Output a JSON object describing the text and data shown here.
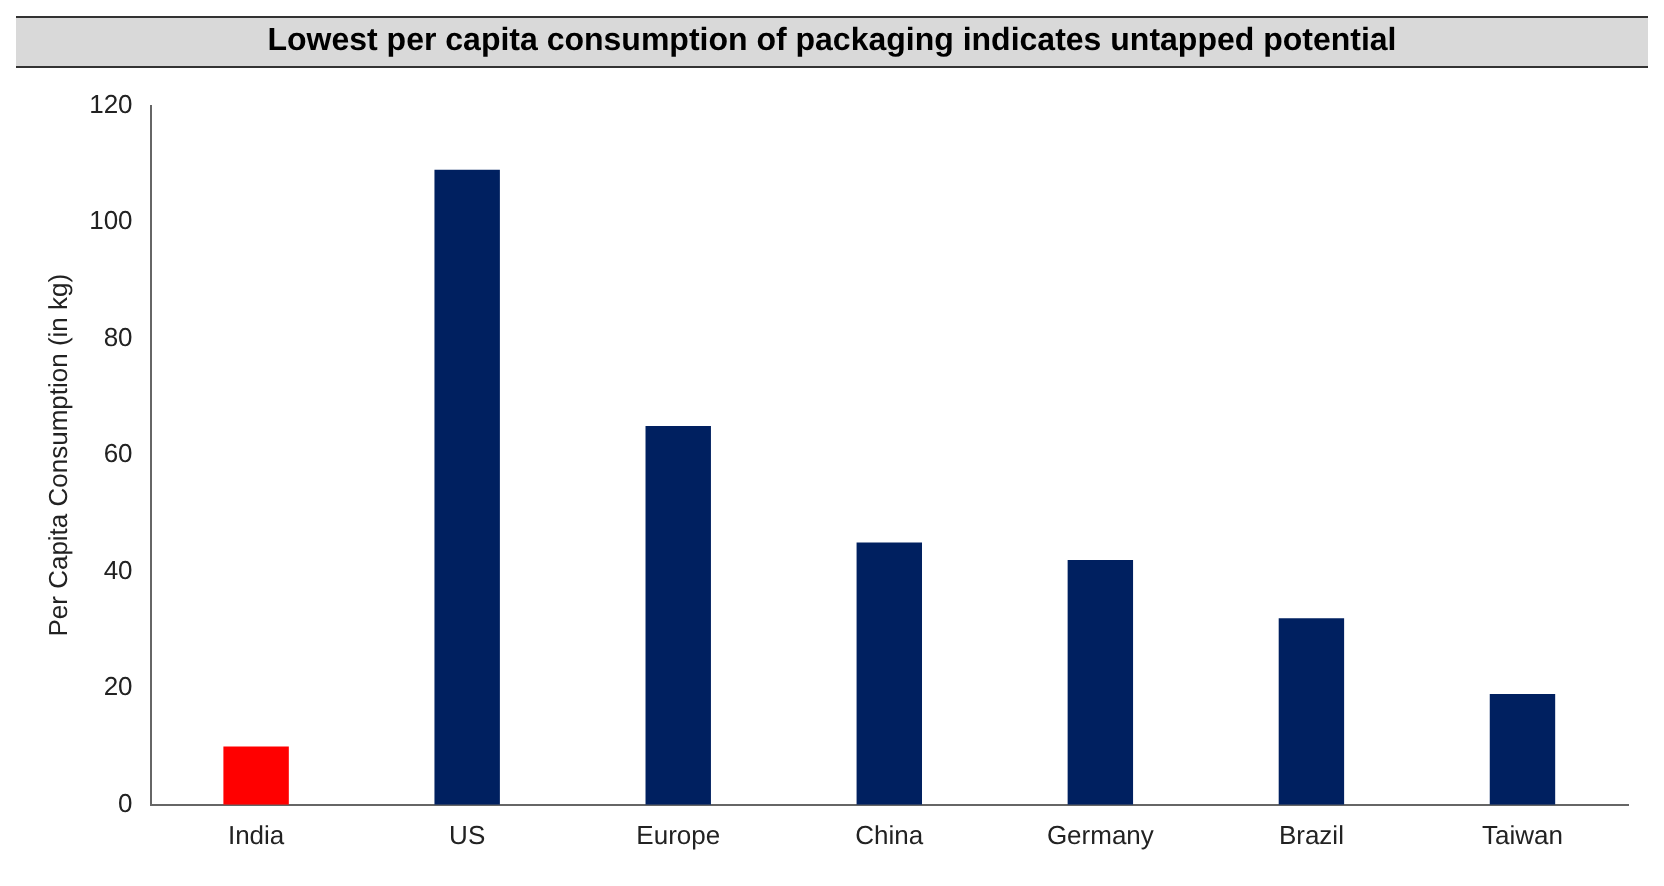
{
  "chart_data": {
    "type": "bar",
    "title": "Lowest per capita consumption of packaging indicates untapped potential",
    "ylabel": "Per Capita Consumption (in kg)",
    "categories": [
      "India",
      "US",
      "Europe",
      "China",
      "Germany",
      "Brazil",
      "Taiwan"
    ],
    "values": [
      10,
      109,
      65,
      45,
      42,
      32,
      19
    ],
    "colors": [
      "#ff0000",
      "#002060",
      "#002060",
      "#002060",
      "#002060",
      "#002060",
      "#002060"
    ],
    "ylim": [
      0,
      120
    ],
    "yticks": [
      0,
      20,
      40,
      60,
      80,
      100,
      120
    ],
    "grid": false,
    "legend": false
  }
}
